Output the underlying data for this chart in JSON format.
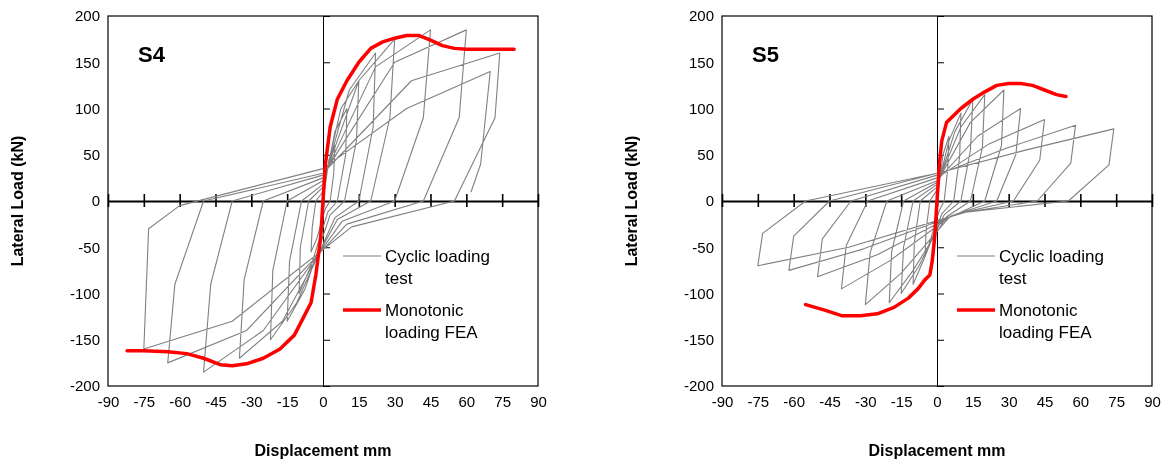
{
  "chart_data": [
    {
      "type": "line",
      "title": "S4",
      "xlabel": "Displacement  mm",
      "ylabel": "Lateral Load (kN)",
      "xlim": [
        -90,
        90
      ],
      "ylim": [
        -200,
        200
      ],
      "xticks": [
        -90,
        -75,
        -60,
        -45,
        -30,
        -15,
        0,
        15,
        30,
        45,
        60,
        75,
        90
      ],
      "yticks": [
        -200,
        -150,
        -100,
        -50,
        0,
        50,
        100,
        150,
        200
      ],
      "grid": false,
      "legend": "bottom right",
      "marker": "none",
      "line_style": "solid",
      "series": [
        {
          "name": "Cyclic loading test",
          "color": "#808080",
          "x": [
            0,
            2.5,
            5,
            4.5,
            3,
            1,
            -2.5,
            -5,
            -4.5,
            -3,
            0,
            5,
            10,
            9.5,
            6,
            2,
            -5,
            -10,
            -9.5,
            -6,
            0,
            7.5,
            15,
            14,
            9,
            3,
            -7.5,
            -15,
            -14,
            -9,
            0,
            11,
            22,
            21,
            15,
            5,
            -11,
            -22,
            -21,
            -15,
            0,
            15,
            30,
            28,
            20,
            6,
            -17,
            -35,
            -33,
            -25,
            0,
            22,
            45,
            42,
            30,
            8,
            -25,
            -50,
            -47,
            -38,
            0,
            30,
            60,
            57,
            42,
            10,
            -32,
            -65,
            -62,
            -50,
            0,
            37,
            74,
            72,
            55,
            12,
            -38,
            -75,
            -73,
            -60,
            0,
            35,
            70,
            66,
            62
          ],
          "values": [
            0,
            45,
            60,
            30,
            0,
            -8,
            -40,
            -55,
            -28,
            0,
            10,
            75,
            100,
            50,
            0,
            -12,
            -70,
            -100,
            -50,
            0,
            15,
            100,
            130,
            65,
            0,
            -15,
            -95,
            -130,
            -65,
            0,
            18,
            120,
            160,
            80,
            0,
            -18,
            -110,
            -150,
            -75,
            0,
            22,
            130,
            175,
            90,
            0,
            -20,
            -130,
            -170,
            -85,
            0,
            25,
            145,
            185,
            90,
            0,
            -22,
            -140,
            -185,
            -90,
            0,
            28,
            150,
            185,
            90,
            0,
            -25,
            -140,
            -175,
            -90,
            0,
            30,
            130,
            160,
            90,
            0,
            -28,
            -130,
            -160,
            -30,
            -5,
            35,
            100,
            140,
            40,
            10
          ]
        },
        {
          "name": "Monotonic loading FEA",
          "color": "#ff0000",
          "x": [
            -82,
            -75,
            -65,
            -57,
            -50,
            -43,
            -38,
            -32,
            -25,
            -18,
            -12,
            -8,
            -5,
            -3,
            -1,
            0,
            1,
            3,
            6,
            10,
            15,
            20,
            25,
            30,
            35,
            40,
            45,
            50,
            55,
            60,
            70,
            80
          ],
          "values": [
            -162,
            -162,
            -163,
            -165,
            -170,
            -177,
            -178,
            -176,
            -170,
            -160,
            -145,
            -125,
            -110,
            -80,
            -40,
            0,
            40,
            80,
            110,
            130,
            150,
            165,
            172,
            176,
            179,
            179,
            174,
            168,
            165,
            164,
            164,
            164
          ]
        }
      ]
    },
    {
      "type": "line",
      "title": "S5",
      "xlabel": "Displacement  mm",
      "ylabel": "Lateral Load (kN)",
      "xlim": [
        -90,
        90
      ],
      "ylim": [
        -200,
        200
      ],
      "xticks": [
        -90,
        -75,
        -60,
        -45,
        -30,
        -15,
        0,
        15,
        30,
        45,
        60,
        75,
        90
      ],
      "yticks": [
        -200,
        -150,
        -100,
        -50,
        0,
        50,
        100,
        150,
        200
      ],
      "grid": false,
      "legend": "bottom right",
      "marker": "none",
      "line_style": "solid",
      "series": [
        {
          "name": "Cyclic loading test",
          "color": "#808080",
          "x": [
            0,
            2.5,
            5,
            4.5,
            3,
            1,
            -2.5,
            -5,
            -4.5,
            -3,
            0,
            5,
            10,
            9.5,
            7,
            2,
            -5,
            -10,
            -9.5,
            -7,
            0,
            7.5,
            15,
            14,
            10,
            3,
            -7.5,
            -15,
            -14,
            -10,
            0,
            10,
            20,
            19,
            14,
            4,
            -10,
            -20,
            -19,
            -14,
            0,
            14,
            28,
            27,
            20,
            5,
            -15,
            -30,
            -28,
            -21,
            0,
            17,
            35,
            33,
            25,
            6,
            -20,
            -40,
            -38,
            -29,
            0,
            22,
            45,
            43,
            32,
            8,
            -25,
            -50,
            -48,
            -36,
            0,
            29,
            58,
            56,
            42,
            10,
            -31,
            -62,
            -60,
            -45,
            0,
            37,
            74,
            72,
            55,
            12,
            -37,
            -75,
            -73,
            -55,
            0
          ],
          "values": [
            0,
            50,
            70,
            35,
            0,
            -10,
            -40,
            -60,
            -30,
            0,
            12,
            65,
            95,
            48,
            0,
            -14,
            -60,
            -90,
            -45,
            0,
            15,
            75,
            110,
            55,
            0,
            -15,
            -70,
            -100,
            -50,
            0,
            18,
            80,
            115,
            58,
            0,
            -17,
            -75,
            -110,
            -55,
            0,
            20,
            85,
            120,
            60,
            0,
            -18,
            -78,
            -112,
            -56,
            0,
            22,
            70,
            100,
            50,
            0,
            -16,
            -65,
            -95,
            -48,
            0,
            25,
            62,
            88,
            44,
            0,
            -14,
            -58,
            -82,
            -41,
            0,
            28,
            57,
            82,
            41,
            0,
            -13,
            -52,
            -75,
            -38,
            0,
            30,
            55,
            78,
            39,
            0,
            -12,
            -50,
            -70,
            -35,
            0,
            30
          ]
        },
        {
          "name": "Monotonic loading FEA",
          "color": "#ff0000",
          "x": [
            -55,
            -47,
            -40,
            -32,
            -25,
            -18,
            -12,
            -8,
            -5,
            -3,
            -2,
            -1,
            0,
            1,
            2,
            4,
            6,
            10,
            15,
            20,
            25,
            30,
            35,
            40,
            45,
            50,
            54
          ],
          "values": [
            -112,
            -118,
            -124,
            -124,
            -122,
            -115,
            -105,
            -95,
            -85,
            -80,
            -65,
            -40,
            0,
            40,
            65,
            85,
            90,
            100,
            110,
            118,
            125,
            127,
            127,
            125,
            120,
            115,
            113
          ]
        }
      ]
    }
  ]
}
